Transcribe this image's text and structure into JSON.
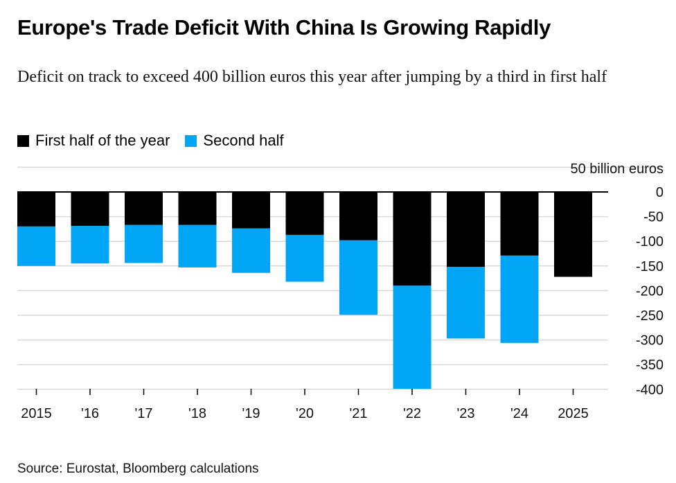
{
  "title": "Europe's Trade Deficit With China Is Growing Rapidly",
  "subtitle": "Deficit on track to exceed 400 billion euros this year after jumping by a third in first half",
  "source": "Source: Eurostat, Bloomberg calculations",
  "colors": {
    "first_half": "#000000",
    "second_half": "#00a6f5",
    "grid": "#d9d9d9"
  },
  "chart_data": {
    "type": "bar",
    "stacked": true,
    "categories": [
      "2015",
      "'16",
      "'17",
      "'18",
      "'19",
      "'20",
      "'21",
      "'22",
      "'23",
      "'24",
      "2025"
    ],
    "series": [
      {
        "name": "First half of the year",
        "color": "#000000",
        "values": [
          -70,
          -69,
          -67,
          -67,
          -74,
          -87,
          -98,
          -190,
          -152,
          -129,
          -172
        ]
      },
      {
        "name": "Second half",
        "color": "#00a6f5",
        "values": [
          -80,
          -76,
          -77,
          -86,
          -90,
          -95,
          -151,
          -209,
          -145,
          -177,
          0
        ]
      }
    ],
    "unit_label": "50 billion euros",
    "y_ticks": [
      0,
      -50,
      -100,
      -150,
      -200,
      -250,
      -300,
      -350,
      -400
    ],
    "y_tick_labels": [
      "0",
      "-50",
      "-100",
      "-150",
      "-200",
      "-250",
      "-300",
      "-350",
      "-400"
    ],
    "ylim": [
      -400,
      50
    ],
    "grid": true,
    "legend_position": "top-left",
    "xlabel": "",
    "ylabel": ""
  }
}
